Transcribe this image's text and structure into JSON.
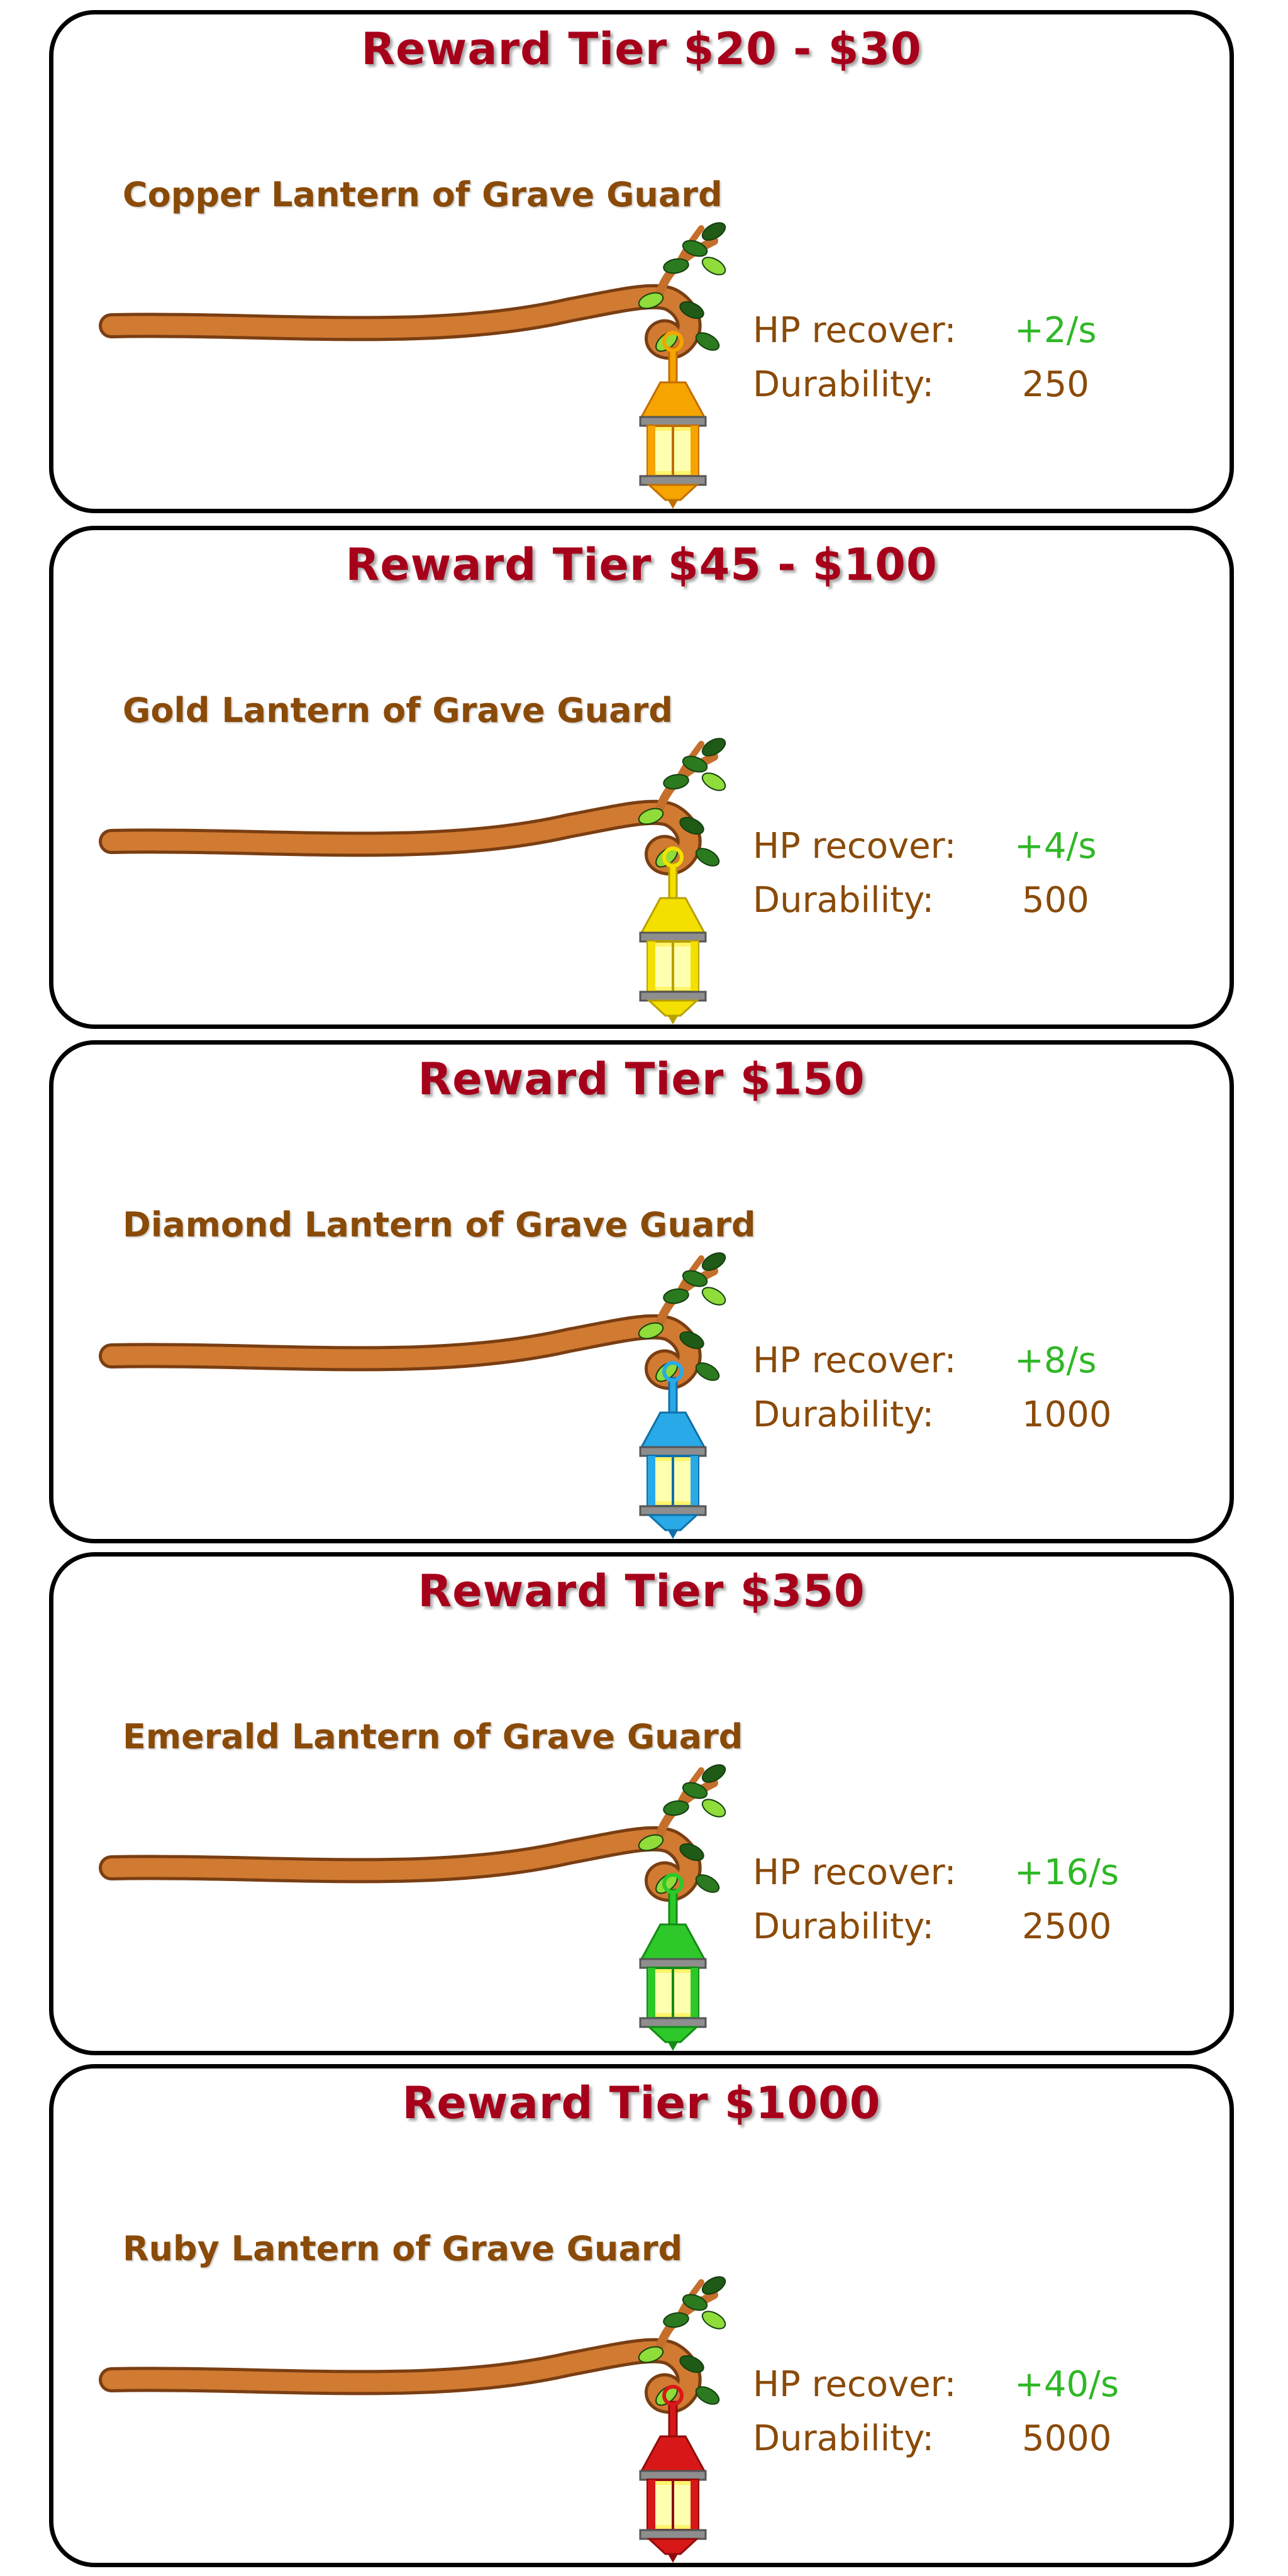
{
  "tiers": [
    {
      "title": "Reward Tier $20 - $30",
      "item": "Copper Lantern of Grave Guard",
      "hp_label": "HP recover:",
      "hp_value": "+2/s",
      "durability_label": "Durability:",
      "durability_value": "250",
      "lantern_color": "#f5a400",
      "lantern_dark": "#c26d00"
    },
    {
      "title": "Reward Tier $45 - $100",
      "item": "Gold Lantern of Grave Guard",
      "hp_label": "HP recover:",
      "hp_value": "+4/s",
      "durability_label": "Durability:",
      "durability_value": "500",
      "lantern_color": "#f4e000",
      "lantern_dark": "#b8a000"
    },
    {
      "title": "Reward Tier $150",
      "item": "Diamond Lantern of Grave Guard",
      "hp_label": "HP recover:",
      "hp_value": "+8/s",
      "durability_label": "Durability:",
      "durability_value": "1000",
      "lantern_color": "#2aa9e8",
      "lantern_dark": "#0f6fa8"
    },
    {
      "title": "Reward Tier $350",
      "item": "Emerald Lantern of Grave Guard",
      "hp_label": "HP recover:",
      "hp_value": "+16/s",
      "durability_label": "Durability:",
      "durability_value": "2500",
      "lantern_color": "#2ec82a",
      "lantern_dark": "#138b14"
    },
    {
      "title": "Reward Tier $1000",
      "item": "Ruby Lantern of Grave Guard",
      "hp_label": "HP recover:",
      "hp_value": "+40/s",
      "durability_label": "Durability:",
      "durability_value": "5000",
      "lantern_color": "#d81818",
      "lantern_dark": "#8f0c0c"
    }
  ],
  "icons": {
    "branch": "tree-branch-icon",
    "lantern": "hanging-lantern-icon"
  }
}
